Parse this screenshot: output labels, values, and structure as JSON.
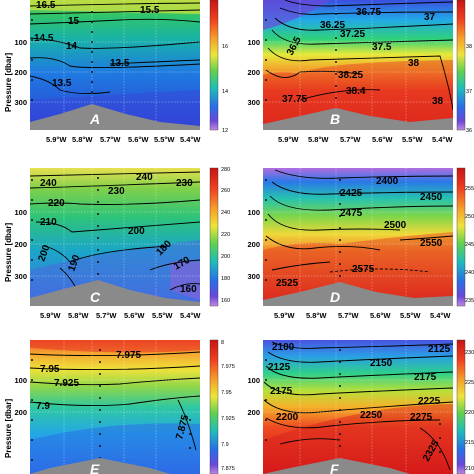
{
  "figure": {
    "y_axis_label": "Pressure [dbar]",
    "panels": [
      {
        "label": "A",
        "colormap": "jet",
        "colorbar_ticks": [
          "16",
          "14",
          "12"
        ],
        "y_ticks": [
          "100",
          "200",
          "300"
        ],
        "x_ticks": [
          "5.9°W",
          "5.8°W",
          "5.7°W",
          "5.6°W",
          "5.5°W",
          "5.4°W"
        ],
        "contours": [
          {
            "value": "16.5"
          },
          {
            "value": "15.5"
          },
          {
            "value": "15"
          },
          {
            "value": "14.5"
          },
          {
            "value": "14"
          },
          {
            "value": "13.5"
          },
          {
            "value": "13.5"
          }
        ]
      },
      {
        "label": "B",
        "colormap": "jet",
        "colorbar_ticks": [
          "38",
          "37",
          "36"
        ],
        "y_ticks": [
          "100",
          "200",
          "300"
        ],
        "x_ticks": [
          "5.9°W",
          "5.8°W",
          "5.7°W",
          "5.6°W",
          "5.5°W",
          "5.4°W"
        ],
        "contours": [
          {
            "value": "36.75"
          },
          {
            "value": "37"
          },
          {
            "value": "37.25"
          },
          {
            "value": "37.5"
          },
          {
            "value": "38"
          },
          {
            "value": "38.25"
          },
          {
            "value": "38.4"
          },
          {
            "value": "38"
          },
          {
            "value": "37.75"
          },
          {
            "value": "36.5"
          },
          {
            "value": "36.25"
          }
        ]
      },
      {
        "label": "C",
        "colormap": "jet",
        "colorbar_ticks": [
          "280",
          "260",
          "240",
          "220",
          "200",
          "180",
          "160"
        ],
        "y_ticks": [
          "100",
          "200",
          "300"
        ],
        "x_ticks": [
          "5.9°W",
          "5.8°W",
          "5.7°W",
          "5.6°W",
          "5.5°W",
          "5.4°W"
        ],
        "contours": [
          {
            "value": "240"
          },
          {
            "value": "230"
          },
          {
            "value": "220"
          },
          {
            "value": "210"
          },
          {
            "value": "200"
          },
          {
            "value": "190"
          },
          {
            "value": "200"
          },
          {
            "value": "170"
          },
          {
            "value": "180"
          },
          {
            "value": "160"
          },
          {
            "value": "240"
          },
          {
            "value": "230"
          }
        ]
      },
      {
        "label": "D",
        "colormap": "jet",
        "colorbar_ticks": [
          "2550",
          "2500",
          "2450",
          "2400",
          "2350"
        ],
        "y_ticks": [
          "100",
          "200",
          "300"
        ],
        "x_ticks": [
          "5.9°W",
          "5.8°W",
          "5.7°W",
          "5.6°W",
          "5.5°W",
          "5.4°W"
        ],
        "contours": [
          {
            "value": "2400"
          },
          {
            "value": "2425"
          },
          {
            "value": "2450"
          },
          {
            "value": "2475"
          },
          {
            "value": "2500"
          },
          {
            "value": "2550"
          },
          {
            "value": "2525"
          },
          {
            "value": "2575"
          }
        ]
      },
      {
        "label": "E",
        "colormap": "jet",
        "colorbar_ticks": [
          "8",
          "7.975",
          "7.95",
          "7.925",
          "7.9",
          "7.875"
        ],
        "y_ticks": [
          "100",
          "200"
        ],
        "x_ticks": [],
        "contours": [
          {
            "value": "7.975"
          },
          {
            "value": "7.95"
          },
          {
            "value": "7.925"
          },
          {
            "value": "7.9"
          },
          {
            "value": "7.875"
          }
        ]
      },
      {
        "label": "F",
        "colormap": "jet",
        "colorbar_ticks": [
          "2300",
          "2250",
          "2200",
          "2150",
          "2100"
        ],
        "y_ticks": [
          "100",
          "200"
        ],
        "x_ticks": [],
        "contours": [
          {
            "value": "2100"
          },
          {
            "value": "2125"
          },
          {
            "value": "2150"
          },
          {
            "value": "2175"
          },
          {
            "value": "2200"
          },
          {
            "value": "2225"
          },
          {
            "value": "2250"
          },
          {
            "value": "2275"
          },
          {
            "value": "2325"
          },
          {
            "value": "2125"
          },
          {
            "value": "2175"
          }
        ]
      }
    ]
  }
}
